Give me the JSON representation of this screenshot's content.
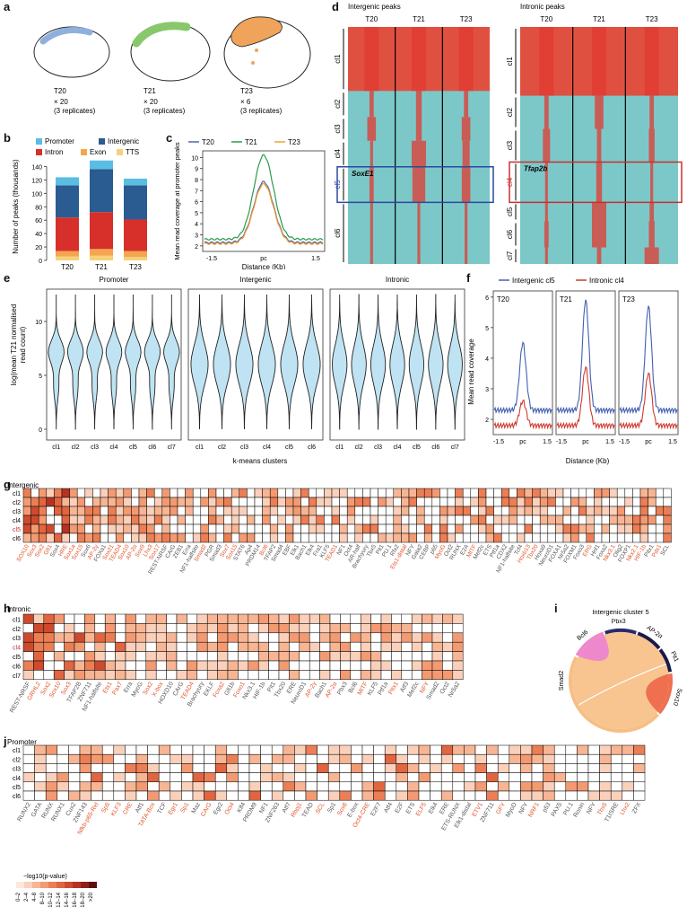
{
  "panels": {
    "a": "a",
    "b": "b",
    "c": "c",
    "d": "d",
    "e": "e",
    "f": "f",
    "g": "g",
    "h": "h",
    "i": "i",
    "j": "j"
  },
  "panel_a": {
    "embryos": [
      {
        "stage": "T20",
        "count": "× 20",
        "reps": "(3 replicates)",
        "color": "#8fb0dc"
      },
      {
        "stage": "T21",
        "count": "× 20",
        "reps": "(3 replicates)",
        "color": "#88c86a"
      },
      {
        "stage": "T23",
        "count": "× 6",
        "reps": "(3 replicates)",
        "color": "#f0a35a"
      }
    ]
  },
  "chart_data": [
    {
      "id": "b",
      "type": "bar",
      "ylabel": "Number of peaks (thousands)",
      "ylim": [
        0,
        150
      ],
      "yticks": [
        0,
        20,
        40,
        60,
        80,
        100,
        120,
        140
      ],
      "categories": [
        "T20",
        "T21",
        "T23"
      ],
      "legend": [
        "Promoter",
        "Intergenic",
        "Intron",
        "Exon",
        "TTS"
      ],
      "colors": [
        "#5bbde4",
        "#2a5b91",
        "#d72f2a",
        "#f4a64f",
        "#f5d27a"
      ],
      "series_bottom_to_top": [
        "TTS",
        "Exon",
        "Intron",
        "Intergenic",
        "Promoter"
      ],
      "stack": {
        "TTS": [
          6,
          7,
          5
        ],
        "Exon": [
          8,
          10,
          9
        ],
        "Intron": [
          50,
          55,
          47
        ],
        "Intergenic": [
          48,
          64,
          51
        ],
        "Promoter": [
          12,
          13,
          10
        ]
      }
    },
    {
      "id": "c",
      "type": "line",
      "ylabel": "Mean read coverage at promoter peaks",
      "xlabel": "Distance (Kb)",
      "xticks": [
        "-1.5",
        "pc",
        "1.5"
      ],
      "yticks": [
        2,
        3,
        4,
        5,
        6,
        7,
        8,
        9,
        10
      ],
      "ylim": [
        1.5,
        10.6
      ],
      "series": [
        {
          "name": "T20",
          "color": "#5566aa",
          "peak": 7.8,
          "base": 2.3
        },
        {
          "name": "T21",
          "color": "#2a9a4a",
          "peak": 10.2,
          "base": 2.6
        },
        {
          "name": "T23",
          "color": "#f0a030",
          "peak": 7.6,
          "base": 2.2
        }
      ]
    },
    {
      "id": "e",
      "type": "violin",
      "ylabel": "log(mean T21 normalised read count)",
      "xlabel": "k-means clusters",
      "yticks": [
        0,
        5,
        10
      ],
      "panels": [
        {
          "title": "Promoter",
          "clusters": [
            "cl1",
            "cl2",
            "cl3",
            "cl4",
            "cl5",
            "cl6",
            "cl7"
          ]
        },
        {
          "title": "Intergenic",
          "clusters": [
            "cl1",
            "cl2",
            "cl3",
            "cl4",
            "cl5",
            "cl6"
          ]
        },
        {
          "title": "Intronic",
          "clusters": [
            "cl1",
            "cl2",
            "cl3",
            "cl4",
            "cl5",
            "cl6",
            "cl7"
          ]
        }
      ]
    },
    {
      "id": "f",
      "type": "line",
      "ylabel": "Mean read coverage",
      "xlabel": "Distance (Kb)",
      "legend": [
        "Intergenic cl5",
        "Intronic cl4"
      ],
      "colors": [
        "#4060b0",
        "#d03a30"
      ],
      "yticks": [
        2,
        3,
        4,
        5,
        6
      ],
      "xticks": [
        "-1.5",
        "pc",
        "1.5"
      ],
      "panels": [
        {
          "title": "T20",
          "peaks": [
            4.5,
            2.6
          ]
        },
        {
          "title": "T21",
          "peaks": [
            5.9,
            3.7
          ]
        },
        {
          "title": "T23",
          "peaks": [
            5.7,
            3.5
          ]
        }
      ]
    },
    {
      "id": "i",
      "type": "chord",
      "title": "Intergenic cluster 5",
      "nodes": [
        "Bcl6",
        "Pbx3",
        "AP-2α",
        "Pit1",
        "Sox10",
        "Smad2"
      ]
    }
  ],
  "panel_d": {
    "left_title": "Intergenic peaks",
    "right_title": "Intronic peaks",
    "cols": [
      "T20",
      "T21",
      "T23"
    ],
    "left_clusters": [
      "cl1",
      "cl2",
      "cl3",
      "cl4",
      "cl5",
      "cl6"
    ],
    "right_clusters": [
      "cl1",
      "cl2",
      "cl3",
      "cl4",
      "cl5",
      "cl6",
      "cl7"
    ],
    "left_box_label": "SoxE1",
    "right_box_label": "Tfap2b"
  },
  "heat_g": {
    "title": "Intergenic",
    "rows": [
      "cl1",
      "cl2",
      "cl3",
      "cl4",
      "cl5",
      "cl6"
    ],
    "cols": [
      "SOX10",
      "Sox3",
      "Sox2",
      "Gfi1",
      "Sox4",
      "HRE",
      "Sox1a",
      "Sox15",
      "Sox6",
      "AP-2γ",
      "FOXa1",
      "Sox21",
      "TEAD4",
      "Sox10",
      "AP-2α",
      "Sox9",
      "Lhx3",
      "Sox17",
      "REST-NRSF",
      "CArG",
      "ZEB1",
      "Erra",
      "NF1-halfsite",
      "Smad2",
      "PGR",
      "Smad3",
      "Sox7",
      "Sox15",
      "STAT6",
      "Ap4",
      "PRDM14",
      "Bcl6",
      "TFAP2",
      "Smad4",
      "EBF",
      "Elk1",
      "Bach1",
      "Elk4",
      "Fra1",
      "KLF5",
      "TEAD1",
      "NF1",
      "Oct4",
      "AR-half",
      "Brachyury",
      "Tbx5",
      "Pit1",
      "PU.1",
      "Rfx2",
      "Ets1-distal",
      "NFY",
      "Gata2",
      "CEBP",
      "p65",
      "MyoG",
      "Oct2",
      "RUNX",
      "E2A",
      "MITF",
      "Mef2c",
      "ETS",
      "Ptf1a",
      "CDX2",
      "NF1-halfsite",
      "Tcf4",
      "Hoxb13",
      "Tbx20",
      "Hoxa9",
      "NeuroD1",
      "FOXA1",
      "Nr5a2",
      "FOXM1",
      "Foxo3",
      "ERG",
      "Hnf1",
      "Foxa2",
      "Nkx3.1",
      "Olig2",
      "FOXP1",
      "Nkx2.1",
      "HIF-1b",
      "Pitx1",
      "Pdx1",
      "SCL"
    ],
    "colored_idx": [
      0,
      1,
      2,
      3,
      5,
      6,
      7,
      9,
      11,
      12,
      13,
      14,
      15,
      16,
      17,
      23,
      26,
      27,
      31,
      40,
      49,
      54,
      58,
      65,
      66,
      73,
      76,
      79,
      80,
      82
    ]
  },
  "heat_h": {
    "title": "Intronic",
    "rows": [
      "cl1",
      "cl2",
      "cl3",
      "cl4",
      "cl5",
      "cl6",
      "cl7"
    ],
    "cols": [
      "REST-NRSF",
      "GRHL2",
      "Sox2",
      "Sox10",
      "Sox3",
      "TFAP2B",
      "ZNF711",
      "NF1-halfsite",
      "Ets1",
      "Pax7",
      "Erra",
      "MyoG",
      "Sox2",
      "X-box",
      "HOXD10",
      "CArG",
      "TEAD4",
      "Brachyury",
      "EKLF",
      "Foxa2",
      "Gfi1b",
      "Foxo1",
      "Nkx3.1",
      "HIF-1b",
      "Pit1",
      "Tbx20",
      "ERE",
      "NeuroD1",
      "AP-2γ",
      "Bach1",
      "AP-2α",
      "Pbx3",
      "Bcl6",
      "MITF",
      "KLF5",
      "Ptf1a",
      "Pitx1",
      "Atf3",
      "Mef2c",
      "NFY",
      "Smad2",
      "Oct2",
      "Nr5a2"
    ],
    "colored_idx": [
      1,
      2,
      3,
      4,
      8,
      9,
      12,
      13,
      16,
      19,
      21,
      28,
      30,
      33,
      36,
      39
    ]
  },
  "heat_j": {
    "title": "Promoter",
    "rows": [
      "cl1",
      "cl2",
      "cl3",
      "cl4",
      "cl5",
      "cl6"
    ],
    "cols": [
      "RUNX2",
      "GATA",
      "RUNX",
      "RUNX1",
      "Cux2",
      "ZNF143",
      "Nfkb-p65-Rel",
      "Sp5",
      "KLF3",
      "CRE",
      "Atf1",
      "TATA-Box",
      "TCF",
      "Egr1",
      "Sp1",
      "Maz",
      "CArG",
      "Egr2",
      "Oct4",
      "Klf4",
      "PRDM9",
      "NF1",
      "ZNF263",
      "Atf7",
      "Rbpj1",
      "TEAD",
      "SCL",
      "Sp1",
      "Sox6",
      "E-box",
      "Oct4-CRE",
      "E2F7",
      "Atf4",
      "E2F",
      "ETS",
      "ELF5",
      "Elk4",
      "ERE",
      "ETS-RUNX",
      "Elk1-distal",
      "ETV1",
      "ZNF711",
      "GFY",
      "MyoD",
      "NFY",
      "NRF1",
      "p53",
      "PAX5",
      "PU.1",
      "Ronin",
      "NFY",
      "Tbx5",
      "T1ISRE",
      "Lhx2",
      "ZFX"
    ],
    "colored_idx": [
      6,
      7,
      8,
      9,
      11,
      13,
      14,
      16,
      18,
      24,
      26,
      28,
      30,
      35,
      40,
      42,
      45,
      51,
      53
    ]
  },
  "legend_j": {
    "title": "−log10(p-value)",
    "bins": [
      "0–2",
      "2–4",
      "4–8",
      "8–10",
      "10–12",
      "12–14",
      "14–16",
      "16–18",
      "18–20",
      ">20"
    ],
    "colors": [
      "#fde8dc",
      "#fbd0bb",
      "#f8b594",
      "#f39a72",
      "#ec7e55",
      "#e16540",
      "#cd4a2e",
      "#b53224",
      "#8f1f1a",
      "#5c0f10"
    ]
  }
}
